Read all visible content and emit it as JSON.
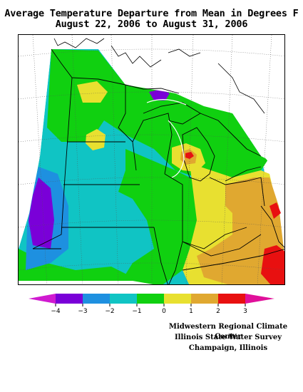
{
  "title": {
    "line1": "Average Temperature Departure from Mean in Degrees F",
    "line2": "August 22, 2006 to August 31, 2006"
  },
  "legend": {
    "ticks": [
      "−4",
      "−3",
      "−2",
      "−1",
      "0",
      "1",
      "2",
      "3"
    ],
    "colors": {
      "lt_m4": "#d01ad0",
      "m4_m3": "#7a00d8",
      "m3_m2": "#1e90e0",
      "m2_m1": "#10c4c4",
      "m1_0": "#10d010",
      "0_1": "#e8e030",
      "1_2": "#e0a830",
      "2_3": "#e81010",
      "gt_3": "#e0109a"
    }
  },
  "credit": {
    "line1": "Midwestern Regional Climate Center",
    "line2": "Illinois State Water Survey",
    "line3": "Champaign, Illinois"
  }
}
